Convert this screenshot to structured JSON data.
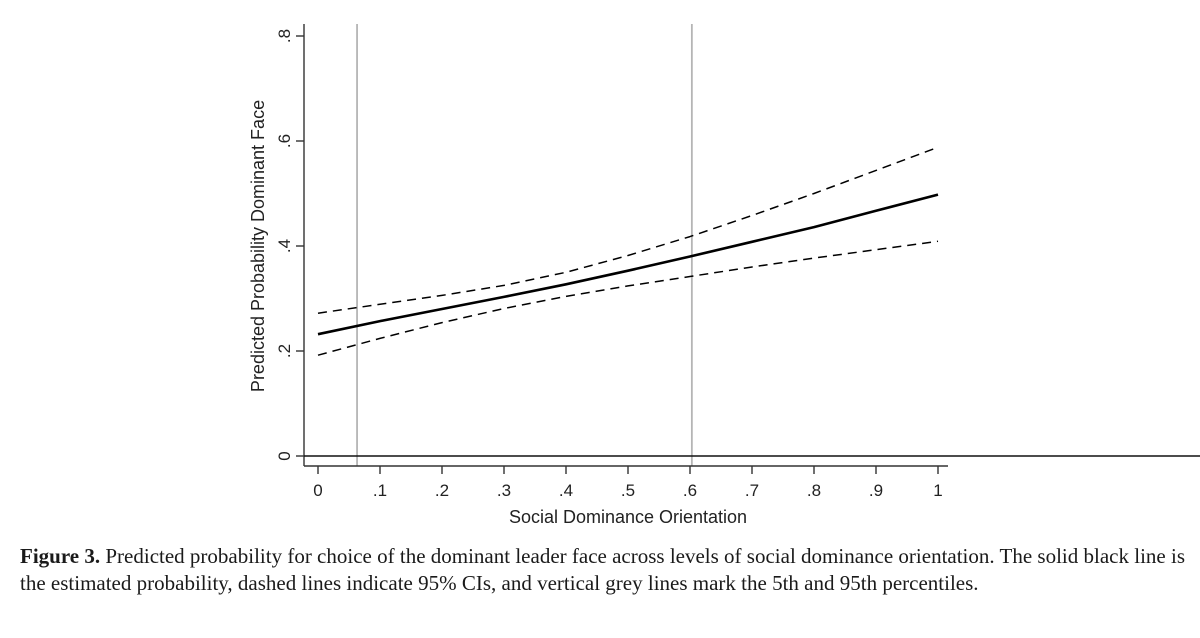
{
  "chart_data": {
    "type": "line",
    "title": "",
    "xlabel": "Social Dominance Orientation",
    "ylabel": "Predicted Probability Dominant Face",
    "xlim": [
      0,
      1
    ],
    "ylim": [
      0,
      0.8
    ],
    "x_ticks": [
      0,
      0.1,
      0.2,
      0.3,
      0.4,
      0.5,
      0.6,
      0.7,
      0.8,
      0.9,
      1
    ],
    "x_tick_labels": [
      "0",
      ".1",
      ".2",
      ".3",
      ".4",
      ".5",
      ".6",
      ".7",
      ".8",
      ".9",
      "1"
    ],
    "y_ticks": [
      0,
      0.2,
      0.4,
      0.6,
      0.8
    ],
    "y_tick_labels": [
      "0",
      ".2",
      ".4",
      ".6",
      ".8"
    ],
    "grid": false,
    "x": [
      0,
      0.1,
      0.2,
      0.3,
      0.4,
      0.5,
      0.6,
      0.7,
      0.8,
      0.9,
      1
    ],
    "series": [
      {
        "role": "estimate",
        "style": "solid",
        "color": "#000000",
        "values": [
          0.232,
          0.257,
          0.28,
          0.303,
          0.327,
          0.353,
          0.38,
          0.408,
          0.436,
          0.467,
          0.498
        ]
      },
      {
        "role": "upper 95% CI",
        "style": "dashed",
        "color": "#000000",
        "values": [
          0.272,
          0.289,
          0.306,
          0.325,
          0.35,
          0.382,
          0.418,
          0.458,
          0.5,
          0.544,
          0.588
        ]
      },
      {
        "role": "lower 95% CI",
        "style": "dashed",
        "color": "#000000",
        "values": [
          0.192,
          0.224,
          0.254,
          0.281,
          0.304,
          0.324,
          0.342,
          0.36,
          0.377,
          0.393,
          0.409
        ]
      }
    ],
    "reference_lines": [
      {
        "orientation": "vertical",
        "x": 0.063,
        "color": "#b5b5b5",
        "meaning": "5th percentile"
      },
      {
        "orientation": "vertical",
        "x": 0.603,
        "color": "#b5b5b5",
        "meaning": "95th percentile"
      }
    ]
  },
  "caption": {
    "label": "Figure 3.",
    "text": " Predicted probability for choice of the dominant leader face across levels of social dominance orientation. The solid black line is the estimated probability, dashed lines indicate 95% CIs, and vertical grey lines mark the 5th and 95th percentiles."
  }
}
